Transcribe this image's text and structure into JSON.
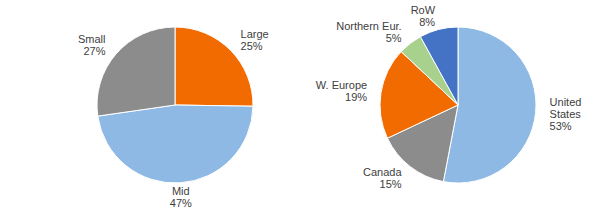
{
  "chart_data": [
    {
      "type": "pie",
      "categories": [
        "Large",
        "Mid",
        "Small"
      ],
      "values": [
        25,
        47,
        27
      ],
      "value_labels": [
        "25%",
        "47%",
        "27%"
      ],
      "colors": [
        "#f26b00",
        "#8db9e4",
        "#8c8c8c"
      ],
      "data_labels": true
    },
    {
      "type": "pie",
      "categories": [
        "United States",
        "Canada",
        "W. Europe",
        "Northern Eur.",
        "RoW"
      ],
      "values": [
        53,
        15,
        19,
        5,
        8
      ],
      "value_labels": [
        "53%",
        "15%",
        "19%",
        "5%",
        "8%"
      ],
      "colors": [
        "#8db9e4",
        "#8c8c8c",
        "#f26b00",
        "#a9d18e",
        "#4472c4"
      ],
      "data_labels": true
    }
  ]
}
